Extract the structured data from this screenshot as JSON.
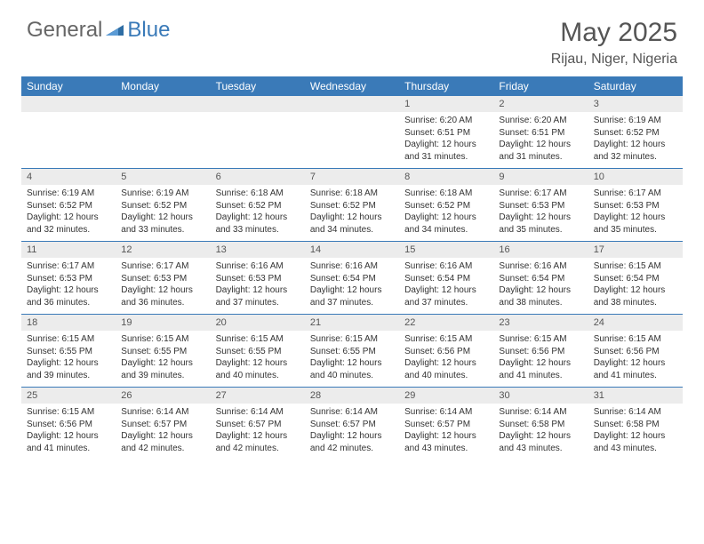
{
  "logo": {
    "text_gray": "General",
    "text_blue": "Blue"
  },
  "title": "May 2025",
  "location": "Rijau, Niger, Nigeria",
  "dayNames": [
    "Sunday",
    "Monday",
    "Tuesday",
    "Wednesday",
    "Thursday",
    "Friday",
    "Saturday"
  ],
  "colors": {
    "header_bg": "#3a7ab8",
    "daynum_bg": "#ececec",
    "border": "#3a7ab8",
    "text": "#333333",
    "title_text": "#555555"
  },
  "weeks": [
    {
      "nums": [
        "",
        "",
        "",
        "",
        "1",
        "2",
        "3"
      ],
      "cells": [
        {},
        {},
        {},
        {},
        {
          "sunrise": "6:20 AM",
          "sunset": "6:51 PM",
          "daylight": "12 hours and 31 minutes."
        },
        {
          "sunrise": "6:20 AM",
          "sunset": "6:51 PM",
          "daylight": "12 hours and 31 minutes."
        },
        {
          "sunrise": "6:19 AM",
          "sunset": "6:52 PM",
          "daylight": "12 hours and 32 minutes."
        }
      ]
    },
    {
      "nums": [
        "4",
        "5",
        "6",
        "7",
        "8",
        "9",
        "10"
      ],
      "cells": [
        {
          "sunrise": "6:19 AM",
          "sunset": "6:52 PM",
          "daylight": "12 hours and 32 minutes."
        },
        {
          "sunrise": "6:19 AM",
          "sunset": "6:52 PM",
          "daylight": "12 hours and 33 minutes."
        },
        {
          "sunrise": "6:18 AM",
          "sunset": "6:52 PM",
          "daylight": "12 hours and 33 minutes."
        },
        {
          "sunrise": "6:18 AM",
          "sunset": "6:52 PM",
          "daylight": "12 hours and 34 minutes."
        },
        {
          "sunrise": "6:18 AM",
          "sunset": "6:52 PM",
          "daylight": "12 hours and 34 minutes."
        },
        {
          "sunrise": "6:17 AM",
          "sunset": "6:53 PM",
          "daylight": "12 hours and 35 minutes."
        },
        {
          "sunrise": "6:17 AM",
          "sunset": "6:53 PM",
          "daylight": "12 hours and 35 minutes."
        }
      ]
    },
    {
      "nums": [
        "11",
        "12",
        "13",
        "14",
        "15",
        "16",
        "17"
      ],
      "cells": [
        {
          "sunrise": "6:17 AM",
          "sunset": "6:53 PM",
          "daylight": "12 hours and 36 minutes."
        },
        {
          "sunrise": "6:17 AM",
          "sunset": "6:53 PM",
          "daylight": "12 hours and 36 minutes."
        },
        {
          "sunrise": "6:16 AM",
          "sunset": "6:53 PM",
          "daylight": "12 hours and 37 minutes."
        },
        {
          "sunrise": "6:16 AM",
          "sunset": "6:54 PM",
          "daylight": "12 hours and 37 minutes."
        },
        {
          "sunrise": "6:16 AM",
          "sunset": "6:54 PM",
          "daylight": "12 hours and 37 minutes."
        },
        {
          "sunrise": "6:16 AM",
          "sunset": "6:54 PM",
          "daylight": "12 hours and 38 minutes."
        },
        {
          "sunrise": "6:15 AM",
          "sunset": "6:54 PM",
          "daylight": "12 hours and 38 minutes."
        }
      ]
    },
    {
      "nums": [
        "18",
        "19",
        "20",
        "21",
        "22",
        "23",
        "24"
      ],
      "cells": [
        {
          "sunrise": "6:15 AM",
          "sunset": "6:55 PM",
          "daylight": "12 hours and 39 minutes."
        },
        {
          "sunrise": "6:15 AM",
          "sunset": "6:55 PM",
          "daylight": "12 hours and 39 minutes."
        },
        {
          "sunrise": "6:15 AM",
          "sunset": "6:55 PM",
          "daylight": "12 hours and 40 minutes."
        },
        {
          "sunrise": "6:15 AM",
          "sunset": "6:55 PM",
          "daylight": "12 hours and 40 minutes."
        },
        {
          "sunrise": "6:15 AM",
          "sunset": "6:56 PM",
          "daylight": "12 hours and 40 minutes."
        },
        {
          "sunrise": "6:15 AM",
          "sunset": "6:56 PM",
          "daylight": "12 hours and 41 minutes."
        },
        {
          "sunrise": "6:15 AM",
          "sunset": "6:56 PM",
          "daylight": "12 hours and 41 minutes."
        }
      ]
    },
    {
      "nums": [
        "25",
        "26",
        "27",
        "28",
        "29",
        "30",
        "31"
      ],
      "cells": [
        {
          "sunrise": "6:15 AM",
          "sunset": "6:56 PM",
          "daylight": "12 hours and 41 minutes."
        },
        {
          "sunrise": "6:14 AM",
          "sunset": "6:57 PM",
          "daylight": "12 hours and 42 minutes."
        },
        {
          "sunrise": "6:14 AM",
          "sunset": "6:57 PM",
          "daylight": "12 hours and 42 minutes."
        },
        {
          "sunrise": "6:14 AM",
          "sunset": "6:57 PM",
          "daylight": "12 hours and 42 minutes."
        },
        {
          "sunrise": "6:14 AM",
          "sunset": "6:57 PM",
          "daylight": "12 hours and 43 minutes."
        },
        {
          "sunrise": "6:14 AM",
          "sunset": "6:58 PM",
          "daylight": "12 hours and 43 minutes."
        },
        {
          "sunrise": "6:14 AM",
          "sunset": "6:58 PM",
          "daylight": "12 hours and 43 minutes."
        }
      ]
    }
  ],
  "labels": {
    "sunrise": "Sunrise: ",
    "sunset": "Sunset: ",
    "daylight": "Daylight: "
  }
}
